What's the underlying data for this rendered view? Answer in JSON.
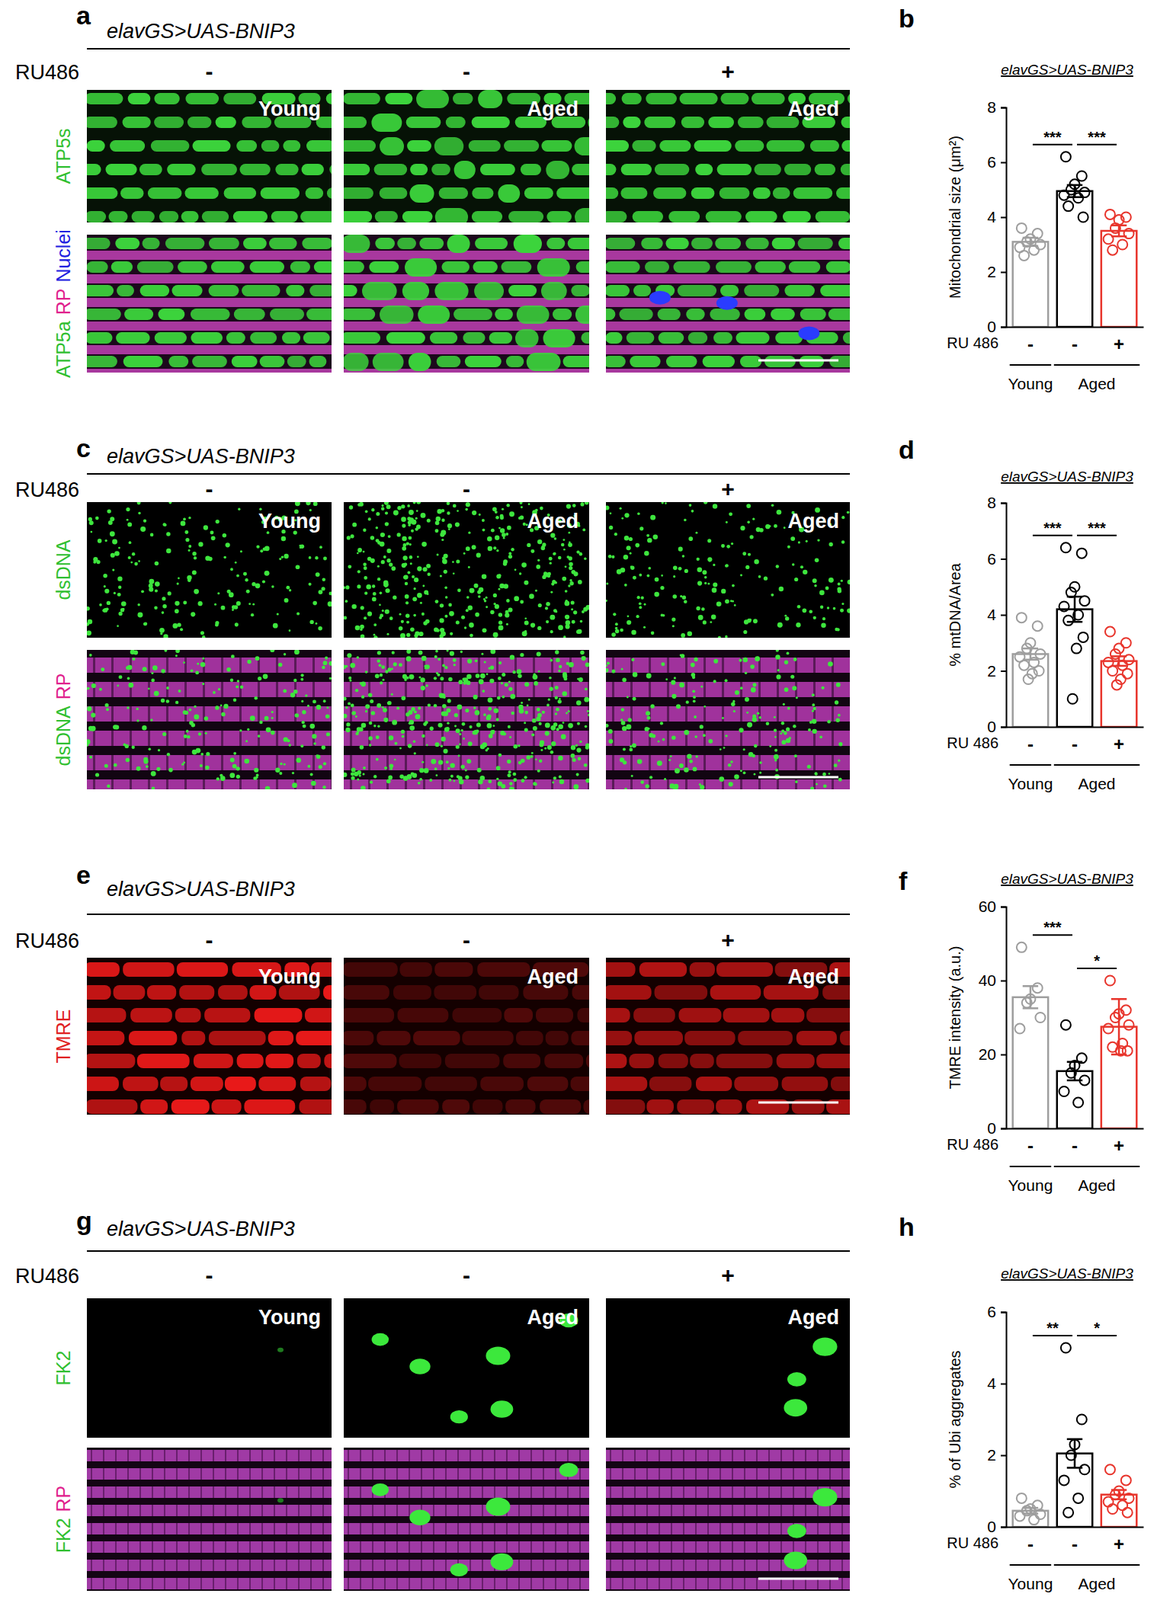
{
  "chart_data": [
    {
      "type": "bar",
      "panel": "b",
      "title": "elavGS>UAS-BNIP3",
      "y_label": "Mitochondrial size (μm²)",
      "category_title": "RU 486",
      "categories": [
        "-",
        "-",
        "+"
      ],
      "groups": [
        {
          "label": "Young",
          "categories": [
            0
          ]
        },
        {
          "label": "Aged",
          "categories": [
            1,
            2
          ]
        }
      ],
      "values": [
        3.1,
        4.95,
        3.5
      ],
      "errors": [
        0.15,
        0.22,
        0.2
      ],
      "points": [
        [
          3.6,
          3.4,
          3.2,
          3.1,
          3.0,
          2.9,
          2.8,
          2.6
        ],
        [
          6.2,
          5.5,
          5.2,
          5.0,
          4.9,
          4.8,
          4.7,
          4.4,
          4.0
        ],
        [
          4.1,
          4.0,
          3.9,
          3.6,
          3.4,
          3.2,
          3.0,
          2.8
        ]
      ],
      "colors": [
        "#9e9e9e",
        "#000000",
        "#e8352c"
      ],
      "ylim": [
        0,
        8
      ],
      "yticks": [
        0,
        2,
        4,
        6,
        8
      ],
      "annotations": [
        {
          "from": 0,
          "to": 1,
          "label": "***"
        },
        {
          "from": 1,
          "to": 2,
          "label": "***"
        }
      ]
    },
    {
      "type": "bar",
      "panel": "d",
      "title": "elavGS>UAS-BNIP3",
      "y_label": "% mtDNA/Area",
      "category_title": "RU 486",
      "categories": [
        "-",
        "-",
        "+"
      ],
      "groups": [
        {
          "label": "Young",
          "categories": [
            0
          ]
        },
        {
          "label": "Aged",
          "categories": [
            1,
            2
          ]
        }
      ],
      "values": [
        2.6,
        4.2,
        2.35
      ],
      "errors": [
        0.2,
        0.45,
        0.17
      ],
      "points": [
        [
          3.9,
          3.6,
          3.0,
          2.8,
          2.6,
          2.5,
          2.3,
          2.2,
          2.0,
          1.9,
          1.7
        ],
        [
          6.4,
          6.2,
          5.0,
          4.8,
          4.5,
          4.3,
          4.0,
          3.8,
          3.2,
          2.8,
          1.0
        ],
        [
          3.4,
          3.0,
          2.8,
          2.6,
          2.4,
          2.3,
          2.2,
          2.0,
          1.9,
          1.7,
          1.5
        ]
      ],
      "colors": [
        "#9e9e9e",
        "#000000",
        "#e8352c"
      ],
      "ylim": [
        0,
        8
      ],
      "yticks": [
        0,
        2,
        4,
        6,
        8
      ],
      "annotations": [
        {
          "from": 0,
          "to": 1,
          "label": "***"
        },
        {
          "from": 1,
          "to": 2,
          "label": "***"
        }
      ]
    },
    {
      "type": "bar",
      "panel": "f",
      "title": "elavGS>UAS-BNIP3",
      "y_label": "TMRE intensity (a.u.)",
      "category_title": "RU 486",
      "categories": [
        "-",
        "-",
        "+"
      ],
      "groups": [
        {
          "label": "Young",
          "categories": [
            0
          ]
        },
        {
          "label": "Aged",
          "categories": [
            1,
            2
          ]
        }
      ],
      "values": [
        35.5,
        15.5,
        27.5
      ],
      "errors": [
        3.0,
        2.5,
        7.5
      ],
      "points": [
        [
          49,
          38,
          35,
          34,
          30,
          27
        ],
        [
          28,
          19,
          17,
          15,
          13,
          10,
          7
        ],
        [
          40,
          32,
          31,
          30,
          28,
          27,
          23,
          22,
          21,
          21
        ]
      ],
      "colors": [
        "#9e9e9e",
        "#000000",
        "#e8352c"
      ],
      "ylim": [
        0,
        60
      ],
      "yticks": [
        0,
        20,
        40,
        60
      ],
      "annotations": [
        {
          "from": 0,
          "to": 1,
          "label": "***"
        },
        {
          "from": 1,
          "to": 2,
          "label": "*"
        }
      ]
    },
    {
      "type": "bar",
      "panel": "h",
      "title": "elavGS>UAS-BNIP3",
      "y_label": "% of Ubi aggregates",
      "category_title": "RU 486",
      "categories": [
        "-",
        "-",
        "+"
      ],
      "groups": [
        {
          "label": "Young",
          "categories": [
            0
          ]
        },
        {
          "label": "Aged",
          "categories": [
            1,
            2
          ]
        }
      ],
      "values": [
        0.45,
        2.05,
        0.9
      ],
      "errors": [
        0.08,
        0.4,
        0.13
      ],
      "points": [
        [
          0.8,
          0.6,
          0.5,
          0.45,
          0.35,
          0.3,
          0.2
        ],
        [
          5.0,
          3.0,
          2.3,
          2.0,
          1.6,
          1.3,
          0.8,
          0.4
        ],
        [
          1.6,
          1.3,
          1.0,
          0.9,
          0.8,
          0.7,
          0.6,
          0.5,
          0.4
        ]
      ],
      "colors": [
        "#9e9e9e",
        "#000000",
        "#e8352c"
      ],
      "ylim": [
        0,
        6
      ],
      "yticks": [
        0,
        2,
        4,
        6
      ],
      "annotations": [
        {
          "from": 0,
          "to": 1,
          "label": "**"
        },
        {
          "from": 1,
          "to": 2,
          "label": "*"
        }
      ]
    }
  ],
  "figure": {
    "panels": [
      {
        "letter": "a",
        "header": "elavGS>UAS-BNIP3",
        "condition_title": "RU486",
        "conditions": [
          "-",
          "-",
          "+"
        ],
        "tile_labels": [
          "Young",
          "Aged",
          "Aged"
        ],
        "rows": [
          [
            {
              "text": "ATP5s",
              "color": "#2fbf2f"
            }
          ],
          [
            {
              "text": "ATP5a",
              "color": "#2fbf2f"
            },
            {
              "text": "RP",
              "color": "#e0208c"
            },
            {
              "text": "Nuclei",
              "color": "#2020e0"
            }
          ]
        ]
      },
      {
        "letter": "c",
        "header": "elavGS>UAS-BNIP3",
        "condition_title": "RU486",
        "conditions": [
          "-",
          "-",
          "+"
        ],
        "tile_labels": [
          "Young",
          "Aged",
          "Aged"
        ],
        "rows": [
          [
            {
              "text": "dsDNA",
              "color": "#2fbf2f"
            }
          ],
          [
            {
              "text": "dsDNA",
              "color": "#2fbf2f"
            },
            {
              "text": "RP",
              "color": "#e0208c"
            }
          ]
        ]
      },
      {
        "letter": "e",
        "header": "elavGS>UAS-BNIP3",
        "condition_title": "RU486",
        "conditions": [
          "-",
          "-",
          "+"
        ],
        "tile_labels": [
          "Young",
          "Aged",
          "Aged"
        ],
        "rows": [
          [
            {
              "text": "TMRE",
              "color": "#e02020"
            }
          ]
        ]
      },
      {
        "letter": "g",
        "header": "elavGS>UAS-BNIP3",
        "condition_title": "RU486",
        "conditions": [
          "-",
          "-",
          "+"
        ],
        "tile_labels": [
          "Young",
          "Aged",
          "Aged"
        ],
        "rows": [
          [
            {
              "text": "FK2",
              "color": "#2fbf2f"
            }
          ],
          [
            {
              "text": "FK2",
              "color": "#2fbf2f"
            },
            {
              "text": "RP",
              "color": "#e0208c"
            }
          ]
        ]
      }
    ]
  }
}
